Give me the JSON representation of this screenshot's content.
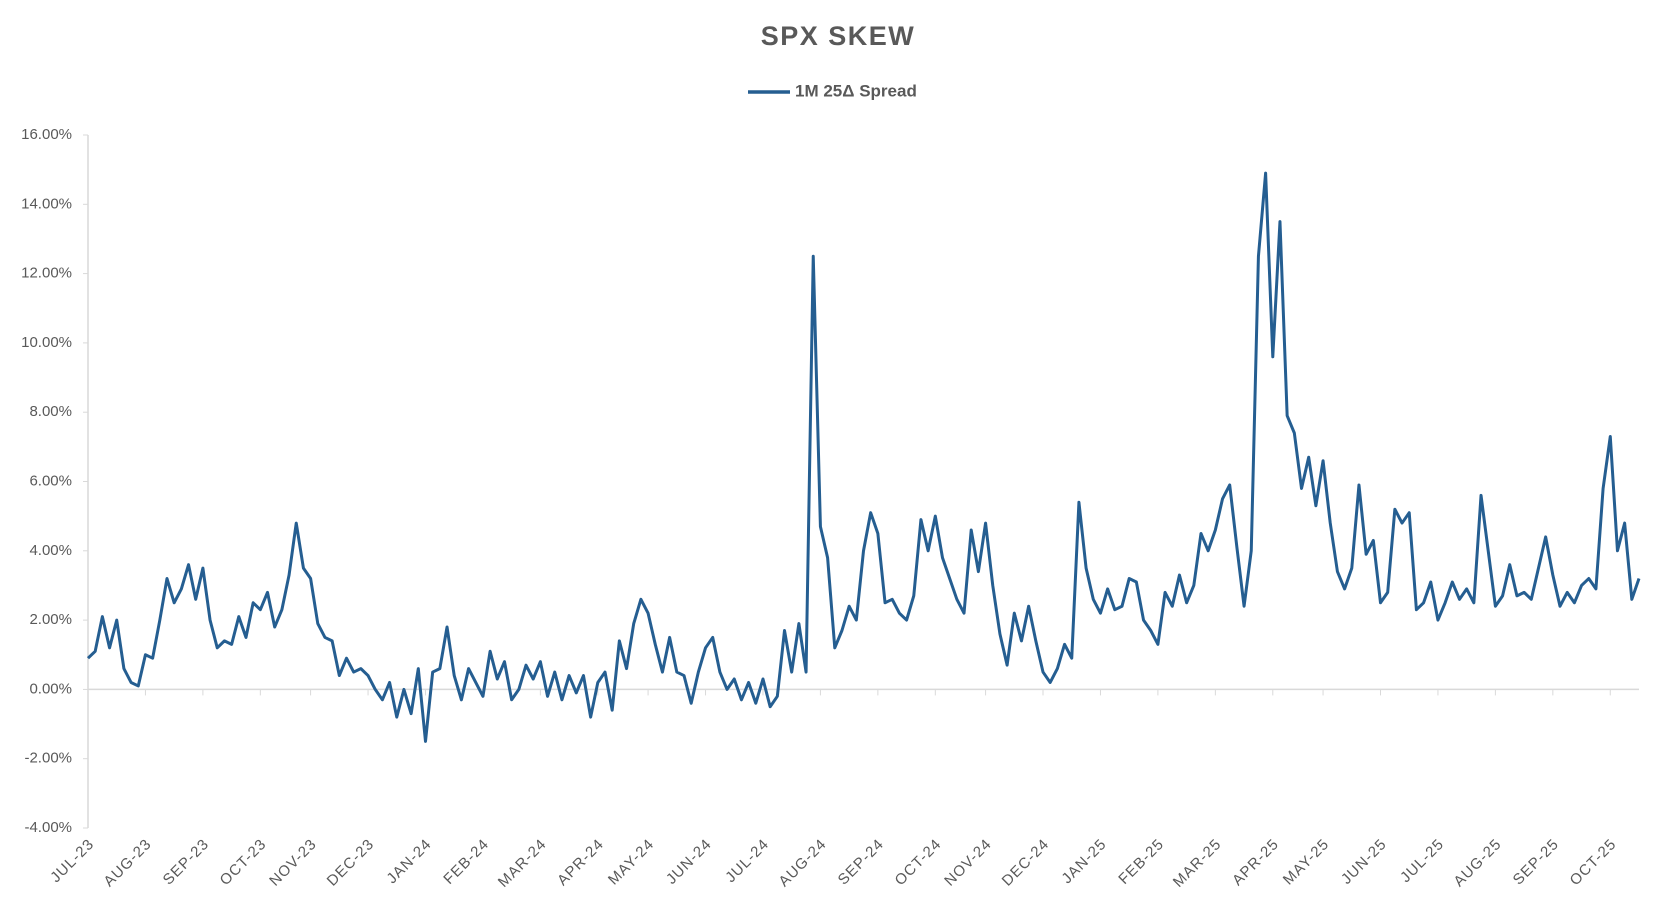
{
  "chart_data": {
    "type": "line",
    "title": "SPX SKEW",
    "categories": [
      "JUL-23",
      null,
      null,
      null,
      null,
      null,
      null,
      null,
      "AUG-23",
      null,
      null,
      null,
      null,
      null,
      null,
      null,
      "SEP-23",
      null,
      null,
      null,
      null,
      null,
      null,
      null,
      "OCT-23",
      null,
      null,
      null,
      null,
      null,
      null,
      "NOV-23",
      null,
      null,
      null,
      null,
      null,
      null,
      null,
      "DEC-23",
      null,
      null,
      null,
      null,
      null,
      null,
      null,
      "JAN-24",
      null,
      null,
      null,
      null,
      null,
      null,
      null,
      "FEB-24",
      null,
      null,
      null,
      null,
      null,
      null,
      null,
      "MAR-24",
      null,
      null,
      null,
      null,
      null,
      null,
      null,
      "APR-24",
      null,
      null,
      null,
      null,
      null,
      null,
      "MAY-24",
      null,
      null,
      null,
      null,
      null,
      null,
      null,
      "JUN-24",
      null,
      null,
      null,
      null,
      null,
      null,
      null,
      "JUL-24",
      null,
      null,
      null,
      null,
      null,
      null,
      null,
      "AUG-24",
      null,
      null,
      null,
      null,
      null,
      null,
      null,
      "SEP-24",
      null,
      null,
      null,
      null,
      null,
      null,
      null,
      "OCT-24",
      null,
      null,
      null,
      null,
      null,
      null,
      "NOV-24",
      null,
      null,
      null,
      null,
      null,
      null,
      null,
      "DEC-24",
      null,
      null,
      null,
      null,
      null,
      null,
      null,
      "JAN-25",
      null,
      null,
      null,
      null,
      null,
      null,
      null,
      "FEB-25",
      null,
      null,
      null,
      null,
      null,
      null,
      null,
      "MAR-25",
      null,
      null,
      null,
      null,
      null,
      null,
      null,
      "APR-25",
      null,
      null,
      null,
      null,
      null,
      null,
      "MAY-25",
      null,
      null,
      null,
      null,
      null,
      null,
      null,
      "JUN-25",
      null,
      null,
      null,
      null,
      null,
      null,
      null,
      "JUL-25",
      null,
      null,
      null,
      null,
      null,
      null,
      null,
      "AUG-25",
      null,
      null,
      null,
      null,
      null,
      null,
      null,
      "SEP-25",
      null,
      null,
      null,
      null,
      null,
      null,
      null,
      "OCT-25",
      null,
      null,
      null,
      null
    ],
    "series": [
      {
        "name": "1M 25Δ Spread",
        "color": "#255e91",
        "values": [
          0.9,
          1.1,
          2.1,
          1.2,
          2.0,
          0.6,
          0.2,
          0.1,
          1.0,
          0.9,
          2.0,
          3.2,
          2.5,
          2.9,
          3.6,
          2.6,
          3.5,
          2.0,
          1.2,
          1.4,
          1.3,
          2.1,
          1.5,
          2.5,
          2.3,
          2.8,
          1.8,
          2.3,
          3.3,
          4.8,
          3.5,
          3.2,
          1.9,
          1.5,
          1.4,
          0.4,
          0.9,
          0.5,
          0.6,
          0.4,
          0.0,
          -0.3,
          0.2,
          -0.8,
          0.0,
          -0.7,
          0.6,
          -1.5,
          0.5,
          0.6,
          1.8,
          0.4,
          -0.3,
          0.6,
          0.2,
          -0.2,
          1.1,
          0.3,
          0.8,
          -0.3,
          0.0,
          0.7,
          0.3,
          0.8,
          -0.2,
          0.5,
          -0.3,
          0.4,
          -0.1,
          0.4,
          -0.8,
          0.2,
          0.5,
          -0.6,
          1.4,
          0.6,
          1.9,
          2.6,
          2.2,
          1.3,
          0.5,
          1.5,
          0.5,
          0.4,
          -0.4,
          0.5,
          1.2,
          1.5,
          0.5,
          0.0,
          0.3,
          -0.3,
          0.2,
          -0.4,
          0.3,
          -0.5,
          -0.2,
          1.7,
          0.5,
          1.9,
          0.5,
          12.5,
          4.7,
          3.8,
          1.2,
          1.7,
          2.4,
          2.0,
          4.0,
          5.1,
          4.5,
          2.5,
          2.6,
          2.2,
          2.0,
          2.7,
          4.9,
          4.0,
          5.0,
          3.8,
          3.2,
          2.6,
          2.2,
          4.6,
          3.4,
          4.8,
          3.0,
          1.6,
          0.7,
          2.2,
          1.4,
          2.4,
          1.4,
          0.5,
          0.2,
          0.6,
          1.3,
          0.9,
          5.4,
          3.5,
          2.6,
          2.2,
          2.9,
          2.3,
          2.4,
          3.2,
          3.1,
          2.0,
          1.7,
          1.3,
          2.8,
          2.4,
          3.3,
          2.5,
          3.0,
          4.5,
          4.0,
          4.6,
          5.5,
          5.9,
          4.1,
          2.4,
          4.0,
          12.5,
          14.9,
          9.6,
          13.5,
          7.9,
          7.4,
          5.8,
          6.7,
          5.3,
          6.6,
          4.8,
          3.4,
          2.9,
          3.5,
          5.9,
          3.9,
          4.3,
          2.5,
          2.8,
          5.2,
          4.8,
          5.1,
          2.3,
          2.5,
          3.1,
          2.0,
          2.5,
          3.1,
          2.6,
          2.9,
          2.5,
          5.6,
          4.0,
          2.4,
          2.7,
          3.6,
          2.7,
          2.8,
          2.6,
          3.5,
          4.4,
          3.3,
          2.4,
          2.8,
          2.5,
          3.0,
          3.2,
          2.9,
          5.8,
          7.3,
          4.0,
          4.8,
          2.6,
          3.2
        ]
      }
    ],
    "ylim": [
      -4,
      16
    ],
    "yticks": [
      {
        "value": -4,
        "label": "-4.00%"
      },
      {
        "value": -2,
        "label": "-2.00%"
      },
      {
        "value": 0,
        "label": "0.00%"
      },
      {
        "value": 2,
        "label": "2.00%"
      },
      {
        "value": 4,
        "label": "4.00%"
      },
      {
        "value": 6,
        "label": "6.00%"
      },
      {
        "value": 8,
        "label": "8.00%"
      },
      {
        "value": 10,
        "label": "10.00%"
      },
      {
        "value": 12,
        "label": "12.00%"
      },
      {
        "value": 14,
        "label": "14.00%"
      },
      {
        "value": 16,
        "label": "16.00%"
      }
    ],
    "legend": "top",
    "grid": false
  }
}
